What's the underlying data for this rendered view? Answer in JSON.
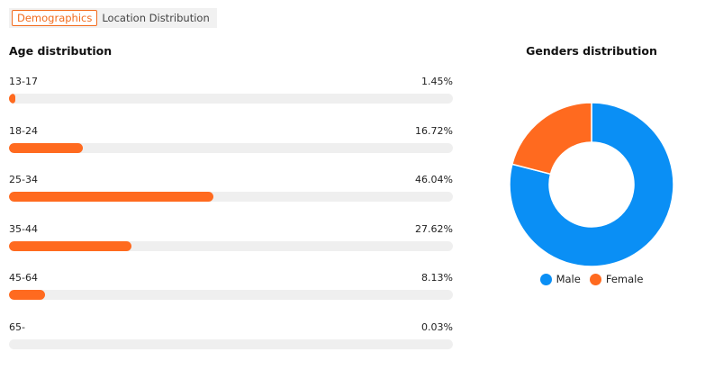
{
  "tabs": {
    "demographics": "Demographics",
    "location": "Location Distribution"
  },
  "age": {
    "title": "Age distribution",
    "rows": [
      {
        "label": "13-17",
        "percent_text": "1.45%",
        "value": 1.45
      },
      {
        "label": "18-24",
        "percent_text": "16.72%",
        "value": 16.72
      },
      {
        "label": "25-34",
        "percent_text": "46.04%",
        "value": 46.04
      },
      {
        "label": "35-44",
        "percent_text": "27.62%",
        "value": 27.62
      },
      {
        "label": "45-64",
        "percent_text": "8.13%",
        "value": 8.13
      },
      {
        "label": "65-",
        "percent_text": "0.03%",
        "value": 0.03
      }
    ]
  },
  "gender": {
    "title": "Genders distribution",
    "slices": [
      {
        "name": "Male",
        "value": 79,
        "color": "#0a8ff5"
      },
      {
        "name": "Female",
        "value": 21,
        "color": "#ff6a1f"
      }
    ]
  },
  "colors": {
    "accent": "#ff6a1f",
    "tab_accent": "#f26b1d",
    "track": "#efefef"
  }
}
